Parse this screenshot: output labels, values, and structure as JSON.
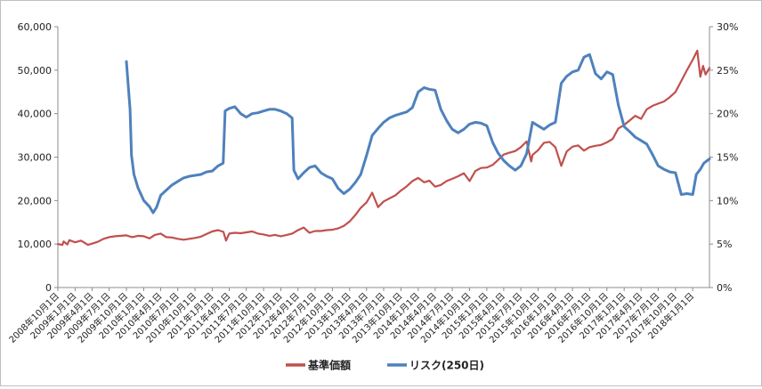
{
  "chart_data": {
    "type": "line",
    "title": "",
    "xlabel": "",
    "ylabel": "",
    "y_left": {
      "min": 0,
      "max": 60000,
      "ticks": [
        "0",
        "10,000",
        "20,000",
        "30,000",
        "40,000",
        "50,000",
        "60,000"
      ]
    },
    "y_right": {
      "min": 0,
      "max": 30,
      "ticks": [
        "0%",
        "5%",
        "10%",
        "15%",
        "20%",
        "25%",
        "30%"
      ]
    },
    "x_range": [
      "2008-10-01",
      "2018-03-31"
    ],
    "grid": false,
    "legend_position": "bottom",
    "x_ticks": [
      {
        "date": "2008-10-01",
        "label": "2008年10月1日"
      },
      {
        "date": "2009-01-01",
        "label": "2009年1月1日"
      },
      {
        "date": "2009-04-01",
        "label": "2009年4月1日"
      },
      {
        "date": "2009-07-01",
        "label": "2009年7月1日"
      },
      {
        "date": "2009-10-01",
        "label": "2009年10月1日"
      },
      {
        "date": "2010-01-01",
        "label": "2010年1月1日"
      },
      {
        "date": "2010-04-01",
        "label": "2010年4月1日"
      },
      {
        "date": "2010-07-01",
        "label": "2010年7月1日"
      },
      {
        "date": "2010-10-01",
        "label": "2010年10月1日"
      },
      {
        "date": "2011-01-01",
        "label": "2011年1月1日"
      },
      {
        "date": "2011-04-01",
        "label": "2011年4月1日"
      },
      {
        "date": "2011-07-01",
        "label": "2011年7月1日"
      },
      {
        "date": "2011-10-01",
        "label": "2011年10月1日"
      },
      {
        "date": "2012-01-01",
        "label": "2012年1月1日"
      },
      {
        "date": "2012-04-01",
        "label": "2012年4月1日"
      },
      {
        "date": "2012-07-01",
        "label": "2012年7月1日"
      },
      {
        "date": "2012-10-01",
        "label": "2012年10月1日"
      },
      {
        "date": "2013-01-01",
        "label": "2013年1月1日"
      },
      {
        "date": "2013-04-01",
        "label": "2013年4月1日"
      },
      {
        "date": "2013-07-01",
        "label": "2013年7月1日"
      },
      {
        "date": "2013-10-01",
        "label": "2013年10月1日"
      },
      {
        "date": "2014-01-01",
        "label": "2014年1月1日"
      },
      {
        "date": "2014-04-01",
        "label": "2014年4月1日"
      },
      {
        "date": "2014-07-01",
        "label": "2014年7月1日"
      },
      {
        "date": "2014-10-01",
        "label": "2014年10月1日"
      },
      {
        "date": "2015-01-01",
        "label": "2015年1月1日"
      },
      {
        "date": "2015-04-01",
        "label": "2015年4月1日"
      },
      {
        "date": "2015-07-01",
        "label": "2015年7月1日"
      },
      {
        "date": "2015-10-01",
        "label": "2015年10月1日"
      },
      {
        "date": "2016-01-01",
        "label": "2016年1月1日"
      },
      {
        "date": "2016-04-01",
        "label": "2016年4月1日"
      },
      {
        "date": "2016-07-01",
        "label": "2016年7月1日"
      },
      {
        "date": "2016-10-01",
        "label": "2016年10月1日"
      },
      {
        "date": "2017-01-01",
        "label": "2017年1月1日"
      },
      {
        "date": "2017-04-01",
        "label": "2017年4月1日"
      },
      {
        "date": "2017-07-01",
        "label": "2017年7月1日"
      },
      {
        "date": "2017-10-01",
        "label": "2017年10月1日"
      },
      {
        "date": "2018-01-01",
        "label": "2018年1月1日"
      }
    ],
    "series": [
      {
        "name": "基準価額",
        "axis": "left",
        "color": "#c0504d",
        "points": [
          [
            "2008-10-01",
            10000
          ],
          [
            "2008-10-25",
            9800
          ],
          [
            "2008-11-01",
            10600
          ],
          [
            "2008-11-20",
            9900
          ],
          [
            "2008-12-01",
            10900
          ],
          [
            "2009-01-01",
            10400
          ],
          [
            "2009-02-01",
            10800
          ],
          [
            "2009-03-10",
            9800
          ],
          [
            "2009-04-01",
            10100
          ],
          [
            "2009-05-01",
            10500
          ],
          [
            "2009-06-01",
            11200
          ],
          [
            "2009-07-01",
            11600
          ],
          [
            "2009-08-01",
            11800
          ],
          [
            "2009-09-01",
            11900
          ],
          [
            "2009-10-01",
            12000
          ],
          [
            "2009-11-01",
            11600
          ],
          [
            "2009-12-01",
            11900
          ],
          [
            "2010-01-01",
            11800
          ],
          [
            "2010-02-01",
            11300
          ],
          [
            "2010-03-01",
            12100
          ],
          [
            "2010-04-01",
            12400
          ],
          [
            "2010-05-01",
            11600
          ],
          [
            "2010-06-01",
            11500
          ],
          [
            "2010-07-01",
            11200
          ],
          [
            "2010-08-01",
            11000
          ],
          [
            "2010-09-01",
            11200
          ],
          [
            "2010-10-01",
            11400
          ],
          [
            "2010-11-01",
            11700
          ],
          [
            "2010-12-01",
            12300
          ],
          [
            "2011-01-01",
            12900
          ],
          [
            "2011-02-01",
            13200
          ],
          [
            "2011-03-01",
            12800
          ],
          [
            "2011-03-15",
            10800
          ],
          [
            "2011-04-01",
            12400
          ],
          [
            "2011-05-01",
            12600
          ],
          [
            "2011-06-01",
            12500
          ],
          [
            "2011-07-01",
            12700
          ],
          [
            "2011-08-01",
            12900
          ],
          [
            "2011-09-01",
            12400
          ],
          [
            "2011-10-01",
            12200
          ],
          [
            "2011-11-01",
            11900
          ],
          [
            "2011-12-01",
            12100
          ],
          [
            "2012-01-01",
            11800
          ],
          [
            "2012-02-01",
            12100
          ],
          [
            "2012-03-01",
            12400
          ],
          [
            "2012-04-01",
            13200
          ],
          [
            "2012-05-01",
            13800
          ],
          [
            "2012-06-01",
            12600
          ],
          [
            "2012-07-01",
            13000
          ],
          [
            "2012-08-01",
            13000
          ],
          [
            "2012-09-01",
            13200
          ],
          [
            "2012-10-01",
            13300
          ],
          [
            "2012-11-01",
            13600
          ],
          [
            "2012-12-01",
            14200
          ],
          [
            "2013-01-01",
            15200
          ],
          [
            "2013-02-01",
            16700
          ],
          [
            "2013-03-01",
            18300
          ],
          [
            "2013-04-01",
            19600
          ],
          [
            "2013-05-01",
            21800
          ],
          [
            "2013-06-01",
            18500
          ],
          [
            "2013-07-01",
            19800
          ],
          [
            "2013-08-01",
            20500
          ],
          [
            "2013-09-01",
            21200
          ],
          [
            "2013-10-01",
            22300
          ],
          [
            "2013-11-01",
            23300
          ],
          [
            "2013-12-01",
            24500
          ],
          [
            "2014-01-01",
            25200
          ],
          [
            "2014-02-01",
            24200
          ],
          [
            "2014-03-01",
            24600
          ],
          [
            "2014-04-01",
            23200
          ],
          [
            "2014-05-01",
            23600
          ],
          [
            "2014-06-01",
            24500
          ],
          [
            "2014-07-01",
            25000
          ],
          [
            "2014-08-01",
            25600
          ],
          [
            "2014-09-01",
            26300
          ],
          [
            "2014-10-01",
            24500
          ],
          [
            "2014-11-01",
            26800
          ],
          [
            "2014-12-01",
            27500
          ],
          [
            "2015-01-01",
            27600
          ],
          [
            "2015-02-01",
            28200
          ],
          [
            "2015-03-01",
            29300
          ],
          [
            "2015-04-01",
            30600
          ],
          [
            "2015-05-01",
            31000
          ],
          [
            "2015-06-01",
            31400
          ],
          [
            "2015-07-01",
            32300
          ],
          [
            "2015-08-01",
            33600
          ],
          [
            "2015-08-25",
            29000
          ],
          [
            "2015-09-01",
            30500
          ],
          [
            "2015-10-01",
            31600
          ],
          [
            "2015-11-01",
            33300
          ],
          [
            "2015-12-01",
            33500
          ],
          [
            "2016-01-01",
            32300
          ],
          [
            "2016-02-01",
            28000
          ],
          [
            "2016-03-01",
            31300
          ],
          [
            "2016-04-01",
            32400
          ],
          [
            "2016-05-01",
            32700
          ],
          [
            "2016-06-01",
            31500
          ],
          [
            "2016-07-01",
            32300
          ],
          [
            "2016-08-01",
            32600
          ],
          [
            "2016-09-01",
            32800
          ],
          [
            "2016-10-01",
            33400
          ],
          [
            "2016-11-01",
            34200
          ],
          [
            "2016-12-01",
            36600
          ],
          [
            "2017-01-01",
            37400
          ],
          [
            "2017-02-01",
            38500
          ],
          [
            "2017-03-01",
            39500
          ],
          [
            "2017-04-01",
            38800
          ],
          [
            "2017-05-01",
            41000
          ],
          [
            "2017-06-01",
            41800
          ],
          [
            "2017-07-01",
            42300
          ],
          [
            "2017-08-01",
            42800
          ],
          [
            "2017-09-01",
            43800
          ],
          [
            "2017-10-01",
            45000
          ],
          [
            "2017-11-01",
            47500
          ],
          [
            "2017-12-01",
            50000
          ],
          [
            "2018-01-01",
            52400
          ],
          [
            "2018-01-25",
            54500
          ],
          [
            "2018-02-10",
            48500
          ],
          [
            "2018-02-25",
            51000
          ],
          [
            "2018-03-10",
            49000
          ],
          [
            "2018-03-31",
            50500
          ]
        ]
      },
      {
        "name": "リスク(250日)",
        "axis": "right",
        "color": "#4f81bd",
        "points": [
          [
            "2009-10-01",
            26.0
          ],
          [
            "2009-10-20",
            20.5
          ],
          [
            "2009-10-28",
            15.2
          ],
          [
            "2009-11-10",
            13.0
          ],
          [
            "2009-12-01",
            11.5
          ],
          [
            "2010-01-01",
            10.0
          ],
          [
            "2010-02-01",
            9.3
          ],
          [
            "2010-02-20",
            8.6
          ],
          [
            "2010-03-10",
            9.2
          ],
          [
            "2010-04-01",
            10.6
          ],
          [
            "2010-05-01",
            11.2
          ],
          [
            "2010-06-01",
            11.8
          ],
          [
            "2010-07-01",
            12.2
          ],
          [
            "2010-08-01",
            12.6
          ],
          [
            "2010-09-01",
            12.8
          ],
          [
            "2010-10-01",
            12.9
          ],
          [
            "2010-11-01",
            13.0
          ],
          [
            "2010-12-01",
            13.3
          ],
          [
            "2011-01-01",
            13.4
          ],
          [
            "2011-02-01",
            14.0
          ],
          [
            "2011-02-28",
            14.3
          ],
          [
            "2011-03-10",
            20.3
          ],
          [
            "2011-04-01",
            20.6
          ],
          [
            "2011-05-01",
            20.8
          ],
          [
            "2011-06-01",
            20.0
          ],
          [
            "2011-07-01",
            19.6
          ],
          [
            "2011-08-01",
            20.0
          ],
          [
            "2011-09-01",
            20.1
          ],
          [
            "2011-10-01",
            20.3
          ],
          [
            "2011-11-01",
            20.5
          ],
          [
            "2011-12-01",
            20.5
          ],
          [
            "2012-01-01",
            20.3
          ],
          [
            "2012-02-01",
            20.0
          ],
          [
            "2012-03-01",
            19.5
          ],
          [
            "2012-03-10",
            13.5
          ],
          [
            "2012-04-01",
            12.5
          ],
          [
            "2012-05-01",
            13.2
          ],
          [
            "2012-06-01",
            13.8
          ],
          [
            "2012-07-01",
            14.0
          ],
          [
            "2012-08-01",
            13.2
          ],
          [
            "2012-09-01",
            12.8
          ],
          [
            "2012-10-01",
            12.5
          ],
          [
            "2012-11-01",
            11.4
          ],
          [
            "2012-12-01",
            10.8
          ],
          [
            "2013-01-01",
            11.3
          ],
          [
            "2013-02-01",
            12.1
          ],
          [
            "2013-03-01",
            13.0
          ],
          [
            "2013-04-01",
            15.2
          ],
          [
            "2013-05-01",
            17.5
          ],
          [
            "2013-06-01",
            18.3
          ],
          [
            "2013-07-01",
            19.0
          ],
          [
            "2013-08-01",
            19.5
          ],
          [
            "2013-09-01",
            19.8
          ],
          [
            "2013-10-01",
            20.0
          ],
          [
            "2013-11-01",
            20.2
          ],
          [
            "2013-12-01",
            20.7
          ],
          [
            "2014-01-01",
            22.5
          ],
          [
            "2014-02-01",
            23.0
          ],
          [
            "2014-03-01",
            22.8
          ],
          [
            "2014-04-01",
            22.7
          ],
          [
            "2014-05-01",
            20.5
          ],
          [
            "2014-06-01",
            19.2
          ],
          [
            "2014-07-01",
            18.2
          ],
          [
            "2014-08-01",
            17.8
          ],
          [
            "2014-09-01",
            18.2
          ],
          [
            "2014-10-01",
            18.8
          ],
          [
            "2014-11-01",
            19.0
          ],
          [
            "2014-12-01",
            18.9
          ],
          [
            "2015-01-01",
            18.6
          ],
          [
            "2015-02-01",
            16.7
          ],
          [
            "2015-03-01",
            15.5
          ],
          [
            "2015-04-01",
            14.6
          ],
          [
            "2015-05-01",
            14.0
          ],
          [
            "2015-06-01",
            13.5
          ],
          [
            "2015-07-01",
            14.0
          ],
          [
            "2015-08-01",
            15.4
          ],
          [
            "2015-09-01",
            19.0
          ],
          [
            "2015-10-01",
            18.6
          ],
          [
            "2015-11-01",
            18.2
          ],
          [
            "2015-12-01",
            18.7
          ],
          [
            "2016-01-01",
            19.0
          ],
          [
            "2016-02-01",
            23.5
          ],
          [
            "2016-03-01",
            24.3
          ],
          [
            "2016-04-01",
            24.8
          ],
          [
            "2016-05-01",
            25.0
          ],
          [
            "2016-06-01",
            26.5
          ],
          [
            "2016-07-01",
            26.8
          ],
          [
            "2016-08-01",
            24.6
          ],
          [
            "2016-09-01",
            24.0
          ],
          [
            "2016-10-01",
            24.8
          ],
          [
            "2016-11-01",
            24.5
          ],
          [
            "2016-12-01",
            21.0
          ],
          [
            "2017-01-01",
            18.5
          ],
          [
            "2017-02-01",
            17.9
          ],
          [
            "2017-03-01",
            17.3
          ],
          [
            "2017-04-01",
            16.9
          ],
          [
            "2017-05-01",
            16.5
          ],
          [
            "2017-06-01",
            15.3
          ],
          [
            "2017-07-01",
            14.0
          ],
          [
            "2017-08-01",
            13.6
          ],
          [
            "2017-09-01",
            13.3
          ],
          [
            "2017-10-01",
            13.2
          ],
          [
            "2017-11-01",
            10.7
          ],
          [
            "2017-12-01",
            10.8
          ],
          [
            "2018-01-01",
            10.7
          ],
          [
            "2018-01-20",
            13.0
          ],
          [
            "2018-02-10",
            13.6
          ],
          [
            "2018-03-01",
            14.3
          ],
          [
            "2018-03-31",
            14.8
          ]
        ]
      }
    ]
  }
}
